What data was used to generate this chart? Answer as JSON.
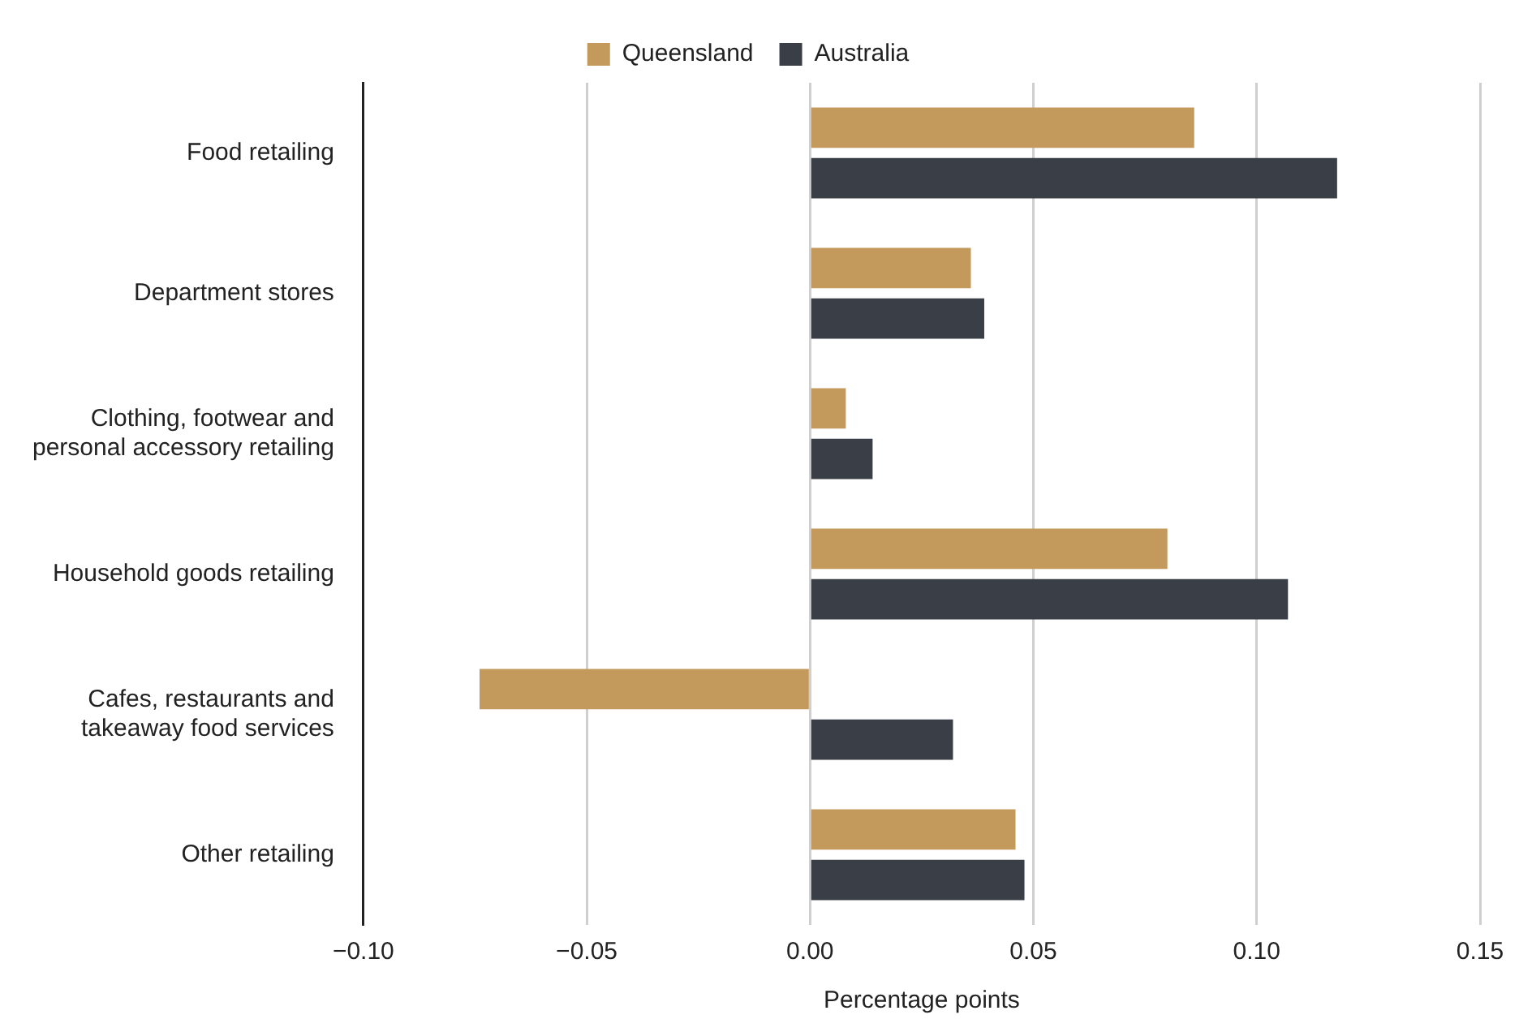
{
  "chart_data": {
    "type": "bar",
    "orientation": "horizontal",
    "xlabel": "Percentage points",
    "categories": [
      "Food retailing",
      "Department stores",
      "Clothing, footwear and personal accessory retailing",
      "Household goods retailing",
      "Cafes, restaurants and takeaway food services",
      "Other retailing"
    ],
    "series": [
      {
        "name": "Queensland",
        "color": "#c4995c",
        "values": [
          0.086,
          0.036,
          0.008,
          0.08,
          -0.074,
          0.046
        ]
      },
      {
        "name": "Australia",
        "color": "#3a3f47",
        "values": [
          0.118,
          0.039,
          0.014,
          0.107,
          0.032,
          0.048
        ]
      }
    ],
    "xlim": [
      -0.1,
      0.15
    ],
    "xticks": [
      {
        "value": -0.1,
        "label": "−0.10"
      },
      {
        "value": -0.05,
        "label": "−0.05"
      },
      {
        "value": 0,
        "label": "0.00"
      },
      {
        "value": 0.05,
        "label": "0.05"
      },
      {
        "value": 0.1,
        "label": "0.10"
      },
      {
        "value": 0.15,
        "label": "0.15"
      }
    ],
    "grid": "x",
    "legend": "top"
  }
}
